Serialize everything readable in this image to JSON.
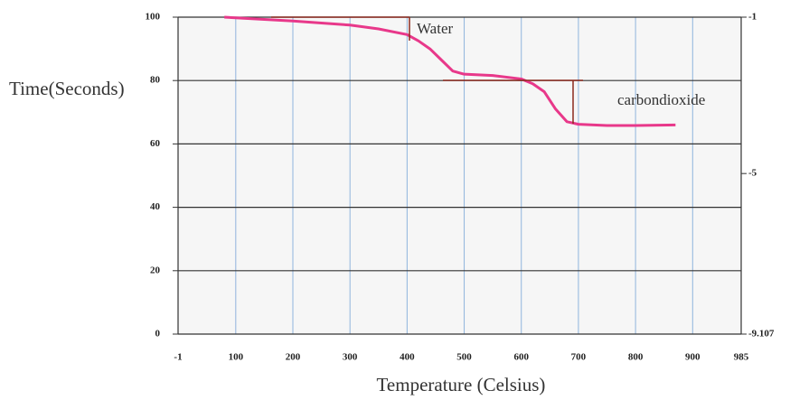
{
  "chart_data": {
    "type": "line",
    "x_label": "Temperature (Celsius)",
    "y_label": "Time(Seconds)",
    "annotations": [
      "Water",
      "carbondioxide"
    ],
    "x": [
      80,
      200,
      300,
      350,
      400,
      420,
      440,
      460,
      480,
      500,
      550,
      600,
      620,
      640,
      660,
      680,
      700,
      750,
      800,
      870
    ],
    "series": [
      {
        "color": "#e8388a",
        "values": [
          100,
          98.8,
          97.5,
          96.3,
          94.5,
          92.5,
          90,
          86.5,
          83,
          82,
          81.6,
          80.5,
          79,
          76.5,
          71,
          67,
          66.2,
          65.8,
          65.8,
          66
        ]
      }
    ],
    "xlim": [
      -1,
      985
    ],
    "xticks": [
      -1,
      100,
      200,
      300,
      400,
      500,
      600,
      700,
      800,
      900,
      985
    ],
    "ylim": [
      0,
      100
    ],
    "yticks": [
      0,
      20,
      40,
      60,
      80,
      100
    ],
    "y2lim": [
      -9.107,
      -1
    ],
    "y2ticks": [
      -9.107,
      -5,
      -1
    ],
    "grid": true
  }
}
